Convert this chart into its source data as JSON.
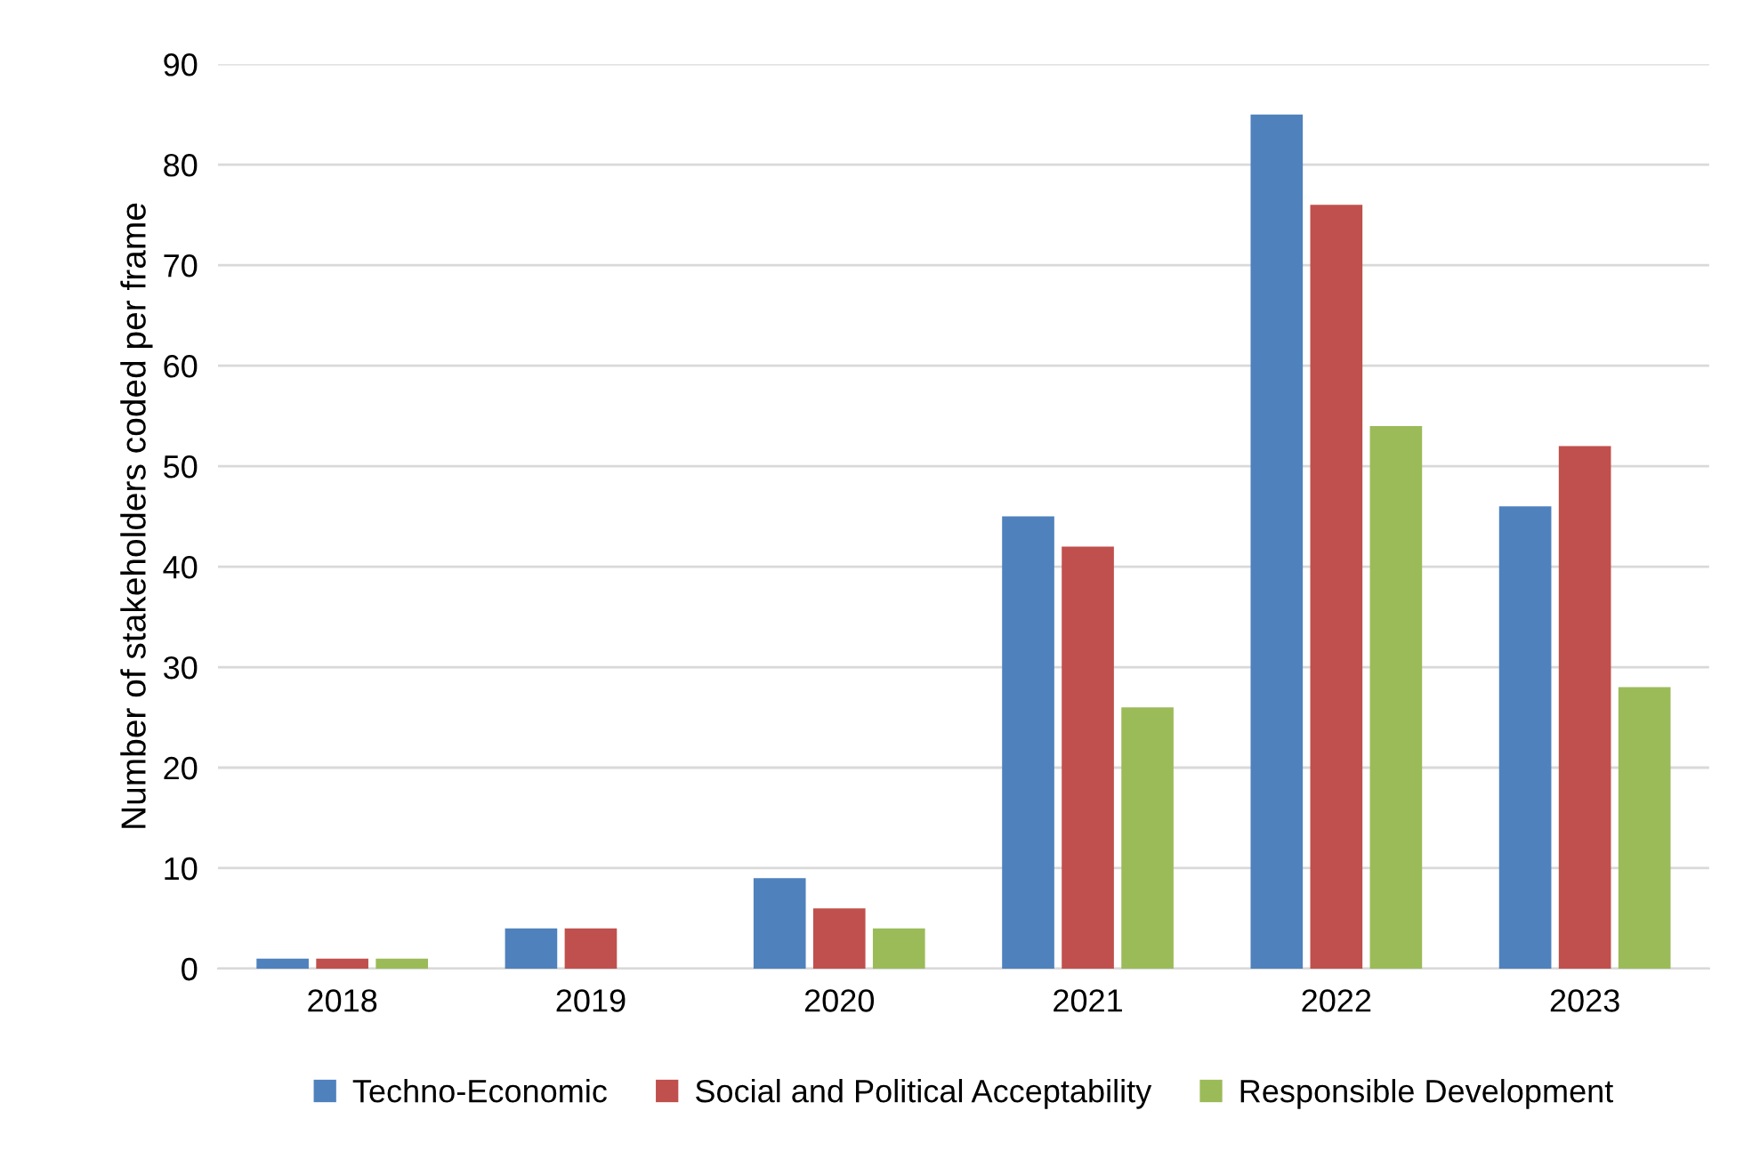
{
  "chart_data": {
    "type": "bar",
    "ylabel": "Number of stakeholders coded per frame",
    "categories": [
      "2018",
      "2019",
      "2020",
      "2021",
      "2022",
      "2023"
    ],
    "series": [
      {
        "name": "Techno-Economic",
        "color": "#4f81bd",
        "values": [
          1,
          4,
          9,
          45,
          85,
          46
        ]
      },
      {
        "name": "Social and Political Acceptability",
        "color": "#c0504d",
        "values": [
          1,
          4,
          6,
          42,
          76,
          52
        ]
      },
      {
        "name": "Responsible Development",
        "color": "#9bbb59",
        "values": [
          1,
          0,
          4,
          26,
          54,
          28
        ]
      }
    ],
    "ylim": [
      0,
      90
    ],
    "yticks": [
      0,
      10,
      20,
      30,
      40,
      50,
      60,
      70,
      80,
      90
    ],
    "grid": "y",
    "legend": "bottom"
  }
}
